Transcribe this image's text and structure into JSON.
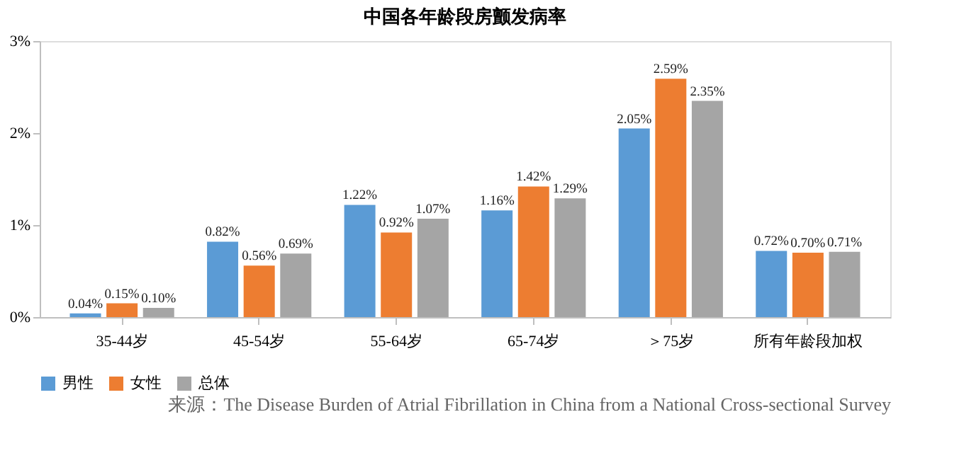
{
  "chart_data": {
    "type": "bar",
    "title": "中国各年龄段房颤发病率",
    "categories": [
      "35-44岁",
      "45-54岁",
      "55-64岁",
      "65-74岁",
      "＞75岁",
      "所有年龄段加权"
    ],
    "series": [
      {
        "name": "男性",
        "color": "#5b9bd5",
        "values": [
          0.04,
          0.82,
          1.22,
          1.16,
          2.05,
          0.72
        ],
        "value_labels": [
          "0.04%",
          "0.82%",
          "1.22%",
          "1.16%",
          "2.05%",
          "0.72%"
        ]
      },
      {
        "name": "女性",
        "color": "#ed7d31",
        "values": [
          0.15,
          0.56,
          0.92,
          1.42,
          2.59,
          0.7
        ],
        "value_labels": [
          "0.15%",
          "0.56%",
          "0.92%",
          "1.42%",
          "2.59%",
          "0.70%"
        ]
      },
      {
        "name": "总体",
        "color": "#a5a5a5",
        "values": [
          0.1,
          0.69,
          1.07,
          1.29,
          2.35,
          0.71
        ],
        "value_labels": [
          "0.10%",
          "0.69%",
          "1.07%",
          "1.29%",
          "2.35%",
          "0.71%"
        ]
      }
    ],
    "ylim": [
      0,
      3
    ],
    "yticks": [
      {
        "value": 0,
        "label": "0%"
      },
      {
        "value": 1,
        "label": "1%"
      },
      {
        "value": 2,
        "label": "2%"
      },
      {
        "value": 3,
        "label": "3%"
      }
    ],
    "legend": "bottom",
    "annotations": [
      "来源：The Disease Burden of Atrial Fibrillation in China from a National Cross-sectional Survey"
    ]
  }
}
